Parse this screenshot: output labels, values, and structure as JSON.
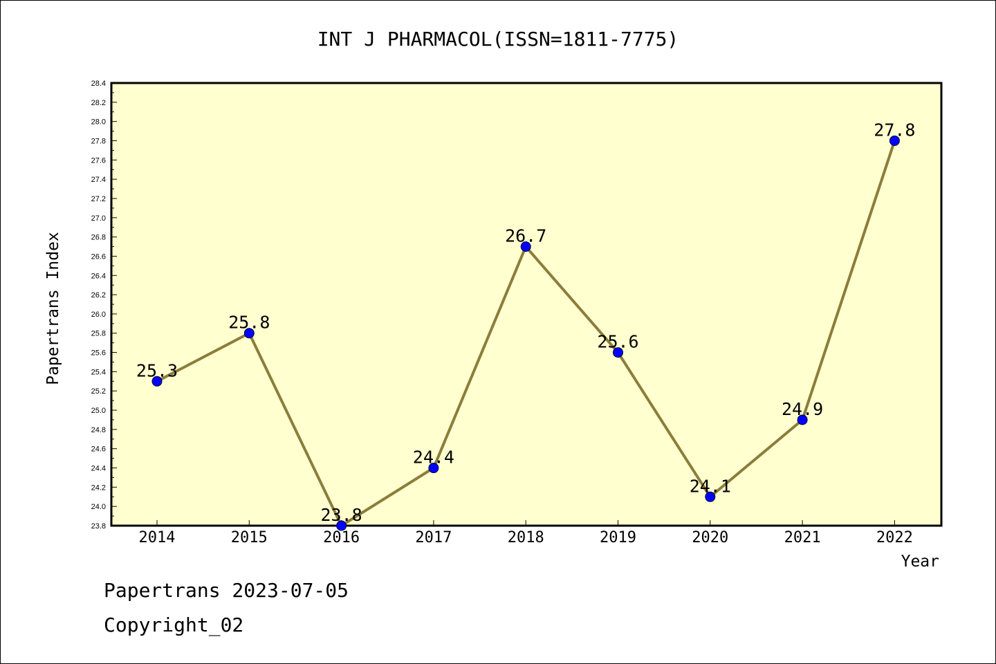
{
  "chart_data": {
    "type": "line",
    "title": "INT J PHARMACOL(ISSN=1811-7775)",
    "xlabel": "Year",
    "ylabel": "Papertrans Index",
    "categories": [
      "2014",
      "2015",
      "2016",
      "2017",
      "2018",
      "2019",
      "2020",
      "2021",
      "2022"
    ],
    "values": [
      25.3,
      25.8,
      23.8,
      24.4,
      26.7,
      25.6,
      24.1,
      24.9,
      27.8
    ],
    "data_labels": [
      "25.3",
      "25.8",
      "23.8",
      "24.4",
      "26.7",
      "25.6",
      "24.1",
      "24.9",
      "27.8"
    ],
    "ylim": [
      23.8,
      28.4
    ],
    "yticks": [
      "23.8",
      "24.0",
      "24.2",
      "24.4",
      "24.6",
      "24.8",
      "25.0",
      "25.2",
      "25.4",
      "25.6",
      "25.8",
      "26.0",
      "26.2",
      "26.4",
      "26.6",
      "26.8",
      "27.0",
      "27.2",
      "27.4",
      "27.6",
      "27.8",
      "28.0",
      "28.2",
      "28.4"
    ],
    "grid": false,
    "legend": "none",
    "colors": {
      "plot_background": "#ffffd0",
      "line": "#8b7d3a",
      "marker": "#0000ff"
    }
  },
  "footer": {
    "line1": "Papertrans 2023-07-05",
    "line2": "Copyright_02"
  }
}
